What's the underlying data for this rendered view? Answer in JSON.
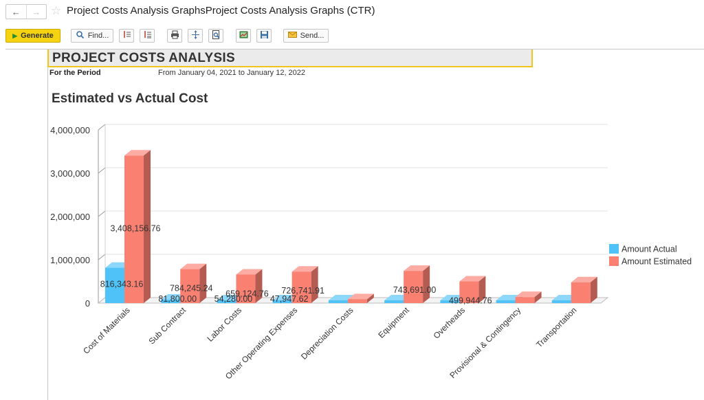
{
  "window": {
    "title": "Project Costs Analysis GraphsProject Costs Analysis Graphs (CTR)",
    "back_icon": "arrow-left-icon",
    "forward_icon": "arrow-right-icon",
    "favorite_icon": "star-icon"
  },
  "toolbar": {
    "generate_label": "Generate",
    "find_label": "Find...",
    "send_label": "Send...",
    "icons": [
      "expand-rows-icon",
      "collapse-rows-icon",
      "print-icon",
      "move-icon",
      "preview-icon",
      "excel-icon",
      "save-icon",
      "envelope-icon"
    ]
  },
  "report": {
    "title": "PROJECT COSTS ANALYSIS",
    "period_label": "For the Period",
    "period_value": "From January 04, 2021 to January 12, 2022"
  },
  "chart_data": {
    "type": "bar",
    "title": "Estimated vs Actual Cost",
    "xlabel": "",
    "ylabel": "",
    "ylim": [
      0,
      4000000
    ],
    "yticks": [
      "0",
      "1,000,000",
      "2,000,000",
      "3,000,000",
      "4,000,000"
    ],
    "ytick_values": [
      0,
      1000000,
      2000000,
      3000000,
      4000000
    ],
    "categories": [
      "Cost of Materials",
      "Sub Contract",
      "Labor Costs",
      "Other Operating Expenses",
      "Depreciation Costs",
      "Equipment",
      "Overheads",
      "Provisional & Contingency",
      "Transportation"
    ],
    "series": [
      {
        "name": "Amount Actual",
        "color": "#4fc3f7",
        "values": [
          816343.16,
          81800,
          54280,
          47947.62,
          0,
          0,
          0,
          0,
          0
        ],
        "labels": [
          "816,343.16",
          "81,800.00",
          "54,280.00",
          "47,947.62",
          "",
          "",
          "",
          "",
          ""
        ]
      },
      {
        "name": "Amount Estimated",
        "color": "#fa8072",
        "values": [
          3408156.76,
          784245.24,
          659124.76,
          726741.91,
          90000,
          743691,
          499944.76,
          140000,
          480000
        ],
        "labels": [
          "3,408,156.76",
          "784,245.24",
          "659,124.76",
          "726,741.91",
          "",
          "743,691.00",
          "499,944.76",
          "",
          ""
        ]
      }
    ],
    "grid": true,
    "legend_position": "right"
  }
}
